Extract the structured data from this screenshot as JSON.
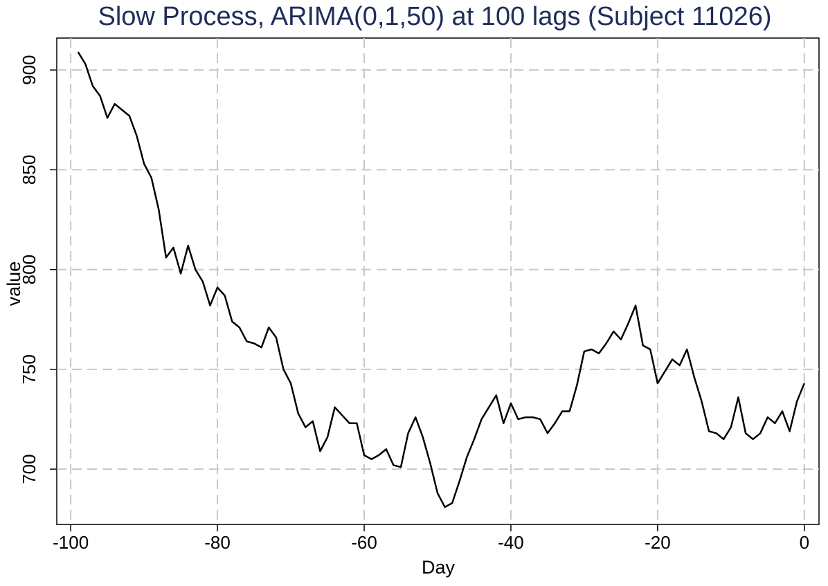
{
  "chart_data": {
    "type": "line",
    "title": "Slow Process, ARIMA(0,1,50) at 100 lags (Subject 11026)",
    "x_label": "Day",
    "y_label": "value",
    "x": [
      -99,
      -98,
      -97,
      -96,
      -95,
      -94,
      -93,
      -92,
      -91,
      -90,
      -89,
      -88,
      -87,
      -86,
      -85,
      -84,
      -83,
      -82,
      -81,
      -80,
      -79,
      -78,
      -77,
      -76,
      -75,
      -74,
      -73,
      -72,
      -71,
      -70,
      -69,
      -68,
      -67,
      -66,
      -65,
      -64,
      -63,
      -62,
      -61,
      -60,
      -59,
      -58,
      -57,
      -56,
      -55,
      -54,
      -53,
      -52,
      -51,
      -50,
      -49,
      -48,
      -47,
      -46,
      -45,
      -44,
      -43,
      -42,
      -41,
      -40,
      -39,
      -38,
      -37,
      -36,
      -35,
      -34,
      -33,
      -32,
      -31,
      -30,
      -29,
      -28,
      -27,
      -26,
      -25,
      -24,
      -23,
      -22,
      -21,
      -20,
      -19,
      -18,
      -17,
      -16,
      -15,
      -14,
      -13,
      -12,
      -11,
      -10,
      -9,
      -8,
      -7,
      -6,
      -5,
      -4,
      -3,
      -2,
      -1,
      0
    ],
    "series": [
      {
        "color": "#000000",
        "values": [
          909,
          903,
          892,
          887,
          876,
          883,
          880,
          877,
          867,
          853,
          846,
          830,
          806,
          811,
          798,
          812,
          800,
          794,
          782,
          791,
          787,
          774,
          771,
          764,
          763,
          761,
          771,
          766,
          750,
          743,
          728,
          721,
          724,
          709,
          716,
          731,
          727,
          723,
          723,
          707,
          705,
          707,
          710,
          702,
          701,
          718,
          726,
          716,
          703,
          688,
          681,
          683,
          694,
          706,
          715,
          725,
          731,
          737,
          723,
          733,
          725,
          726,
          726,
          725,
          718,
          723,
          729,
          729,
          742,
          759,
          760,
          758,
          763,
          769,
          765,
          773,
          782,
          762,
          760,
          743,
          749,
          755,
          752,
          760,
          746,
          734,
          719,
          718,
          715,
          721,
          736,
          718,
          715,
          718,
          726,
          723,
          729,
          719,
          734,
          743
        ]
      }
    ],
    "xlim": [
      -101.9,
      2
    ],
    "ylim": [
      672.3,
      916
    ],
    "xticks": [
      -100,
      -80,
      -60,
      -40,
      -20,
      0
    ],
    "yticks": [
      700,
      750,
      800,
      850,
      900
    ],
    "grid": true,
    "title_color": "#1f2d5a"
  }
}
